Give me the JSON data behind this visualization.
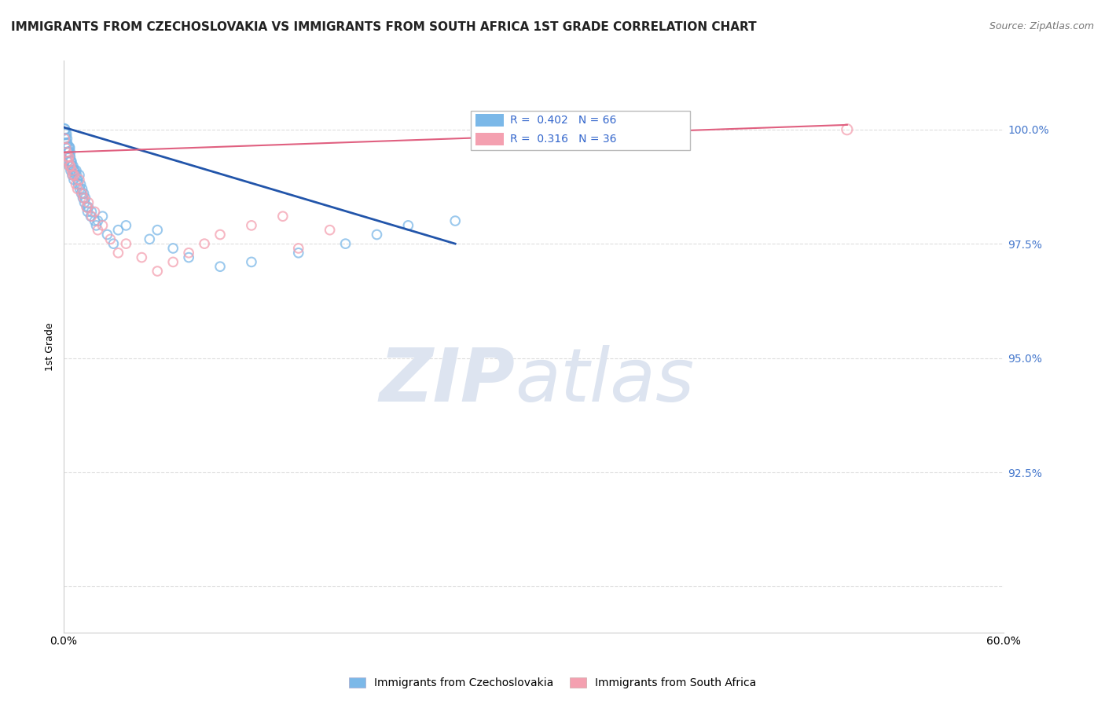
{
  "title": "IMMIGRANTS FROM CZECHOSLOVAKIA VS IMMIGRANTS FROM SOUTH AFRICA 1ST GRADE CORRELATION CHART",
  "source": "Source: ZipAtlas.com",
  "ylabel": "1st Grade",
  "y_ticks": [
    90.0,
    92.5,
    95.0,
    97.5,
    100.0
  ],
  "y_tick_labels": [
    "",
    "92.5%",
    "95.0%",
    "97.5%",
    "100.0%"
  ],
  "xlim": [
    0.0,
    60.0
  ],
  "ylim": [
    89.0,
    101.5
  ],
  "legend1_label": "Immigrants from Czechoslovakia",
  "legend2_label": "Immigrants from South Africa",
  "R1": 0.402,
  "N1": 66,
  "R2": 0.316,
  "N2": 36,
  "color_blue": "#7bb8e8",
  "color_pink": "#f4a0b0",
  "color_blue_line": "#2255aa",
  "color_pink_line": "#e06080",
  "blue_x": [
    0.05,
    0.08,
    0.1,
    0.12,
    0.15,
    0.18,
    0.2,
    0.22,
    0.25,
    0.28,
    0.3,
    0.32,
    0.35,
    0.38,
    0.4,
    0.42,
    0.45,
    0.5,
    0.55,
    0.6,
    0.65,
    0.7,
    0.75,
    0.8,
    0.85,
    0.9,
    0.95,
    1.0,
    1.05,
    1.1,
    1.15,
    1.2,
    1.25,
    1.3,
    1.35,
    1.4,
    1.5,
    1.55,
    1.6,
    1.75,
    1.8,
    2.0,
    2.1,
    2.2,
    2.5,
    2.8,
    3.2,
    3.5,
    4.0,
    5.5,
    6.0,
    7.0,
    8.0,
    10.0,
    12.0,
    15.0,
    18.0,
    20.0,
    22.0,
    25.0,
    0.17,
    0.27,
    0.37,
    0.47,
    0.57,
    0.67
  ],
  "blue_y": [
    100.0,
    100.0,
    99.9,
    99.8,
    99.9,
    99.7,
    99.8,
    99.7,
    99.6,
    99.5,
    99.6,
    99.5,
    99.6,
    99.4,
    99.5,
    99.4,
    99.3,
    99.3,
    99.2,
    99.2,
    99.1,
    99.1,
    99.0,
    99.1,
    99.0,
    98.9,
    98.8,
    99.0,
    98.7,
    98.8,
    98.6,
    98.7,
    98.5,
    98.6,
    98.4,
    98.5,
    98.3,
    98.2,
    98.3,
    98.1,
    98.2,
    98.0,
    97.9,
    98.0,
    98.1,
    97.7,
    97.5,
    97.8,
    97.9,
    97.6,
    97.8,
    97.4,
    97.2,
    97.0,
    97.1,
    97.3,
    97.5,
    97.7,
    97.9,
    98.0,
    99.6,
    99.3,
    99.2,
    99.1,
    99.0,
    98.9
  ],
  "blue_sizes": [
    100,
    80,
    90,
    80,
    100,
    80,
    90,
    80,
    100,
    80,
    110,
    80,
    100,
    80,
    90,
    80,
    90,
    80,
    70,
    80,
    80,
    80,
    70,
    80,
    70,
    70,
    70,
    80,
    70,
    70,
    70,
    70,
    70,
    70,
    70,
    70,
    70,
    70,
    70,
    70,
    70,
    70,
    70,
    70,
    70,
    70,
    70,
    70,
    70,
    70,
    70,
    70,
    70,
    70,
    70,
    70,
    70,
    70,
    70,
    70,
    70,
    70,
    70,
    70,
    70,
    70
  ],
  "pink_x": [
    0.08,
    0.15,
    0.2,
    0.3,
    0.35,
    0.45,
    0.55,
    0.7,
    0.8,
    1.0,
    1.2,
    1.3,
    1.5,
    1.8,
    2.0,
    2.2,
    2.5,
    3.0,
    3.5,
    4.0,
    5.0,
    6.0,
    7.0,
    8.0,
    9.0,
    10.0,
    12.0,
    14.0,
    15.0,
    17.0,
    50.0,
    0.6,
    0.4,
    0.25,
    0.9,
    1.6
  ],
  "pink_y": [
    99.8,
    99.6,
    99.5,
    99.3,
    99.4,
    99.2,
    99.1,
    99.0,
    98.8,
    98.9,
    98.6,
    98.5,
    98.3,
    98.1,
    98.2,
    97.8,
    97.9,
    97.6,
    97.3,
    97.5,
    97.2,
    96.9,
    97.1,
    97.3,
    97.5,
    97.7,
    97.9,
    98.1,
    97.4,
    97.8,
    100.0,
    99.0,
    99.2,
    99.4,
    98.7,
    98.4
  ],
  "pink_sizes": [
    70,
    70,
    70,
    80,
    70,
    70,
    70,
    70,
    70,
    80,
    70,
    70,
    80,
    70,
    70,
    70,
    70,
    70,
    70,
    70,
    70,
    70,
    70,
    70,
    70,
    70,
    70,
    70,
    70,
    70,
    90,
    70,
    70,
    70,
    70,
    70
  ],
  "background_color": "#ffffff",
  "grid_color": "#dddddd",
  "watermark_zip": "ZIP",
  "watermark_atlas": "atlas",
  "watermark_color": "#dde4f0"
}
